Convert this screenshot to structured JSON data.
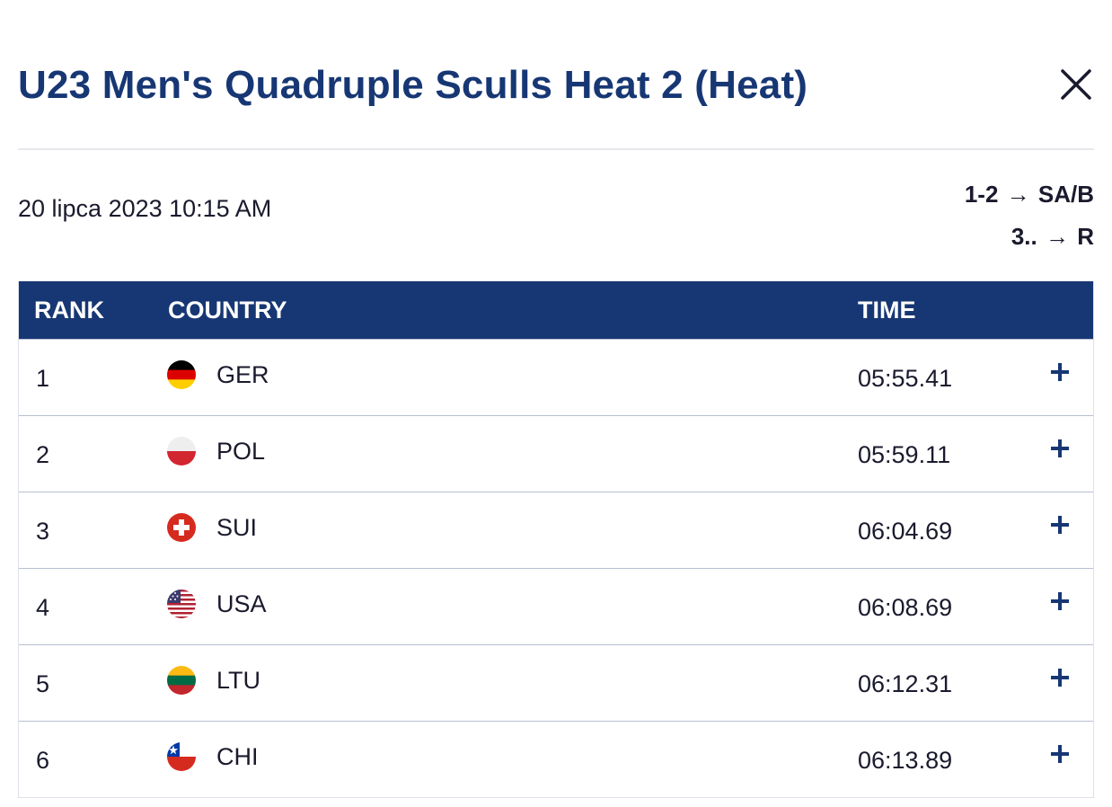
{
  "title": "U23 Men's Quadruple Sculls Heat 2 (Heat)",
  "race_date": "20 lipca 2023 10:15 AM",
  "progression": [
    {
      "range": "1-2",
      "arrow": "→",
      "dest": "SA/B"
    },
    {
      "range": "3..",
      "arrow": "→",
      "dest": "R"
    }
  ],
  "table": {
    "headers": {
      "rank": "RANK",
      "country": "COUNTRY",
      "time": "TIME"
    },
    "rows": [
      {
        "rank": "1",
        "country": "GER",
        "time": "05:55.41"
      },
      {
        "rank": "2",
        "country": "POL",
        "time": "05:59.11"
      },
      {
        "rank": "3",
        "country": "SUI",
        "time": "06:04.69"
      },
      {
        "rank": "4",
        "country": "USA",
        "time": "06:08.69"
      },
      {
        "rank": "5",
        "country": "LTU",
        "time": "06:12.31"
      },
      {
        "rank": "6",
        "country": "CHI",
        "time": "06:13.89"
      }
    ]
  },
  "colors": {
    "primary": "#173774",
    "divider": "#e6e8ee",
    "row_border": "#b9bfd1"
  },
  "icons": {
    "close": "close-icon",
    "expand": "plus-icon"
  }
}
